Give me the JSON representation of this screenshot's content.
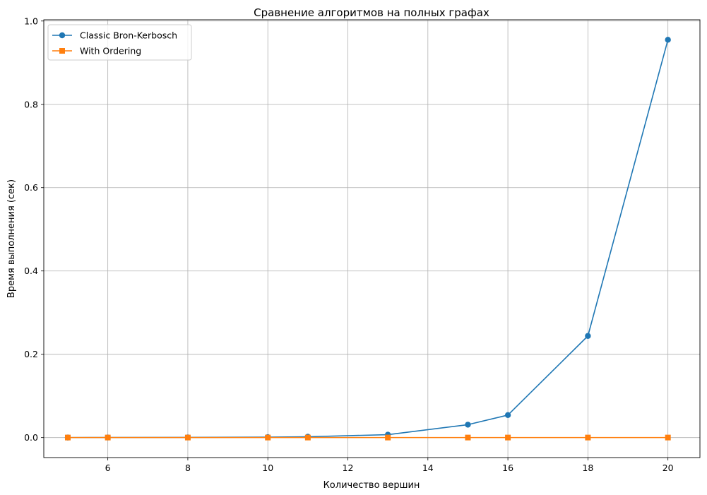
{
  "chart_data": {
    "type": "line",
    "title": "Сравнение алгоритмов на полных графах",
    "xlabel": "Количество вершин",
    "ylabel": "Время выполнения (сек)",
    "xlim": [
      4.4,
      20.8
    ],
    "ylim": [
      -0.048,
      1.003
    ],
    "xticks": [
      "6",
      "8",
      "10",
      "12",
      "14",
      "16",
      "18",
      "20"
    ],
    "yticks": [
      "0.0",
      "0.2",
      "0.4",
      "0.6",
      "0.8",
      "1.0"
    ],
    "grid": true,
    "legend_position": "top-left",
    "series": [
      {
        "name": "Classic Bron-Kerbosch",
        "color": "#1f77b4",
        "marker": "circle",
        "x": [
          5,
          6,
          8,
          10,
          11,
          13,
          15,
          16,
          18,
          20
        ],
        "values": [
          0.0001,
          0.0002,
          0.0005,
          0.001,
          0.002,
          0.007,
          0.031,
          0.054,
          0.244,
          0.955
        ]
      },
      {
        "name": "With Ordering",
        "color": "#ff7f0e",
        "marker": "square",
        "x": [
          5,
          6,
          8,
          10,
          11,
          13,
          15,
          16,
          18,
          20
        ],
        "values": [
          0.0001,
          0.0001,
          0.0001,
          0.0001,
          0.0001,
          0.0001,
          0.0001,
          0.0001,
          0.0001,
          0.0001
        ]
      }
    ]
  }
}
